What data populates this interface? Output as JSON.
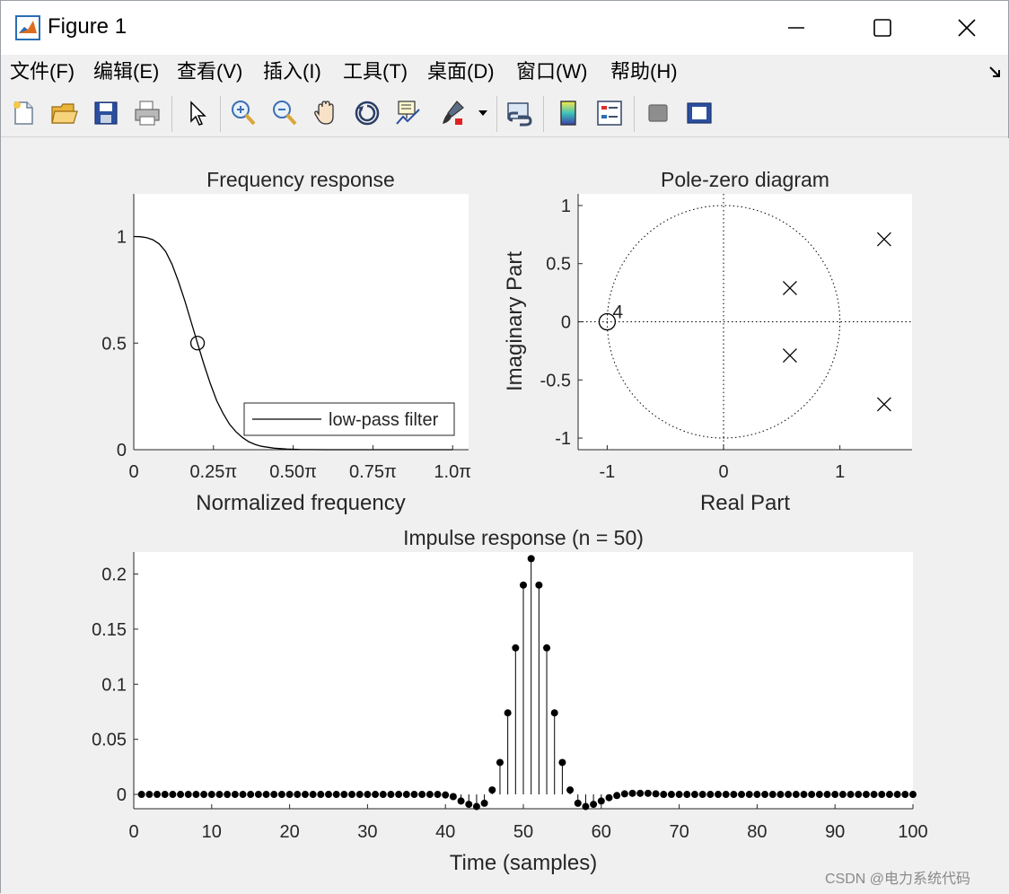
{
  "window": {
    "title": "Figure 1",
    "controls": {
      "minimize": "—",
      "maximize": "☐",
      "close": "✕"
    }
  },
  "menu": {
    "items": [
      {
        "label": "文件(F)",
        "key": "F"
      },
      {
        "label": "编辑(E)",
        "key": "E"
      },
      {
        "label": "查看(V)",
        "key": "V"
      },
      {
        "label": "插入(I)",
        "key": "I"
      },
      {
        "label": "工具(T)",
        "key": "T"
      },
      {
        "label": "桌面(D)",
        "key": "D"
      },
      {
        "label": "窗口(W)",
        "key": "W"
      },
      {
        "label": "帮助(H)",
        "key": "H"
      }
    ]
  },
  "toolbar": {
    "tools": [
      {
        "name": "new-figure-icon"
      },
      {
        "name": "open-file-icon"
      },
      {
        "name": "save-icon"
      },
      {
        "name": "print-icon"
      },
      {
        "name": "edit-plot-cursor-icon"
      },
      {
        "name": "zoom-in-icon"
      },
      {
        "name": "zoom-out-icon"
      },
      {
        "name": "pan-hand-icon"
      },
      {
        "name": "rotate-3d-icon"
      },
      {
        "name": "data-cursor-icon"
      },
      {
        "name": "brush-icon"
      },
      {
        "name": "brush-dropdown-icon"
      },
      {
        "name": "link-plot-icon"
      },
      {
        "name": "insert-colorbar-icon"
      },
      {
        "name": "insert-legend-icon"
      },
      {
        "name": "hide-plot-tools-icon"
      },
      {
        "name": "show-plot-tools-icon"
      }
    ]
  },
  "chart_data": [
    {
      "type": "line",
      "title": "Frequency response",
      "xlabel": "Normalized frequency",
      "ylabel": "",
      "xlim": [
        0,
        1.05
      ],
      "ylim": [
        0,
        1.2
      ],
      "xticks": [
        "0",
        "0.25π",
        "0.50π",
        "0.75π",
        "1.0π"
      ],
      "xtick_values": [
        0,
        0.25,
        0.5,
        0.75,
        1.0
      ],
      "yticks": [
        "0",
        "0.5",
        "1"
      ],
      "ytick_values": [
        0,
        0.5,
        1
      ],
      "series": [
        {
          "name": "low-pass filter",
          "x": [
            0,
            0.02,
            0.04,
            0.06,
            0.08,
            0.1,
            0.12,
            0.14,
            0.16,
            0.18,
            0.2,
            0.22,
            0.24,
            0.26,
            0.28,
            0.3,
            0.32,
            0.34,
            0.36,
            0.38,
            0.4,
            0.44,
            0.48,
            0.52,
            0.56,
            0.6,
            0.7,
            0.8,
            0.9,
            1.0
          ],
          "y": [
            1.0,
            0.999,
            0.995,
            0.985,
            0.965,
            0.93,
            0.87,
            0.79,
            0.7,
            0.6,
            0.5,
            0.4,
            0.31,
            0.23,
            0.17,
            0.12,
            0.085,
            0.058,
            0.038,
            0.025,
            0.016,
            0.007,
            0.003,
            0.001,
            0.0005,
            0.0002,
            0,
            0,
            0,
            0
          ]
        }
      ],
      "marker_point": {
        "x": 0.2,
        "y": 0.5
      },
      "legend": "bottom-right"
    },
    {
      "type": "scatter",
      "title": "Pole-zero diagram",
      "xlabel": "Real Part",
      "ylabel": "Imaginary Part",
      "xlim": [
        -1.25,
        1.62
      ],
      "ylim": [
        -1.1,
        1.1
      ],
      "xticks": [
        "-1",
        "0",
        "1"
      ],
      "xtick_values": [
        -1,
        0,
        1
      ],
      "yticks": [
        "-1",
        "-0.5",
        "0",
        "0.5",
        "1"
      ],
      "ytick_values": [
        -1,
        -0.5,
        0,
        0.5,
        1
      ],
      "zeros": [
        {
          "x": -1,
          "y": 0,
          "multiplicity": "4"
        }
      ],
      "poles": [
        {
          "x": 0.57,
          "y": 0.29
        },
        {
          "x": 0.57,
          "y": -0.29
        },
        {
          "x": 1.38,
          "y": 0.71
        },
        {
          "x": 1.38,
          "y": -0.71
        }
      ],
      "unit_circle": true
    },
    {
      "type": "stem",
      "title": "Impulse response (n = 50)",
      "xlabel": "Time (samples)",
      "ylabel": "",
      "xlim": [
        0,
        100
      ],
      "ylim": [
        -0.013,
        0.22
      ],
      "xticks": [
        "0",
        "10",
        "20",
        "30",
        "40",
        "50",
        "60",
        "70",
        "80",
        "90",
        "100"
      ],
      "xtick_values": [
        0,
        10,
        20,
        30,
        40,
        50,
        60,
        70,
        80,
        90,
        100
      ],
      "yticks": [
        "0",
        "0.05",
        "0.1",
        "0.15",
        "0.2"
      ],
      "ytick_values": [
        0,
        0.05,
        0.1,
        0.15,
        0.2
      ],
      "x": [
        1,
        2,
        3,
        4,
        5,
        6,
        7,
        8,
        9,
        10,
        11,
        12,
        13,
        14,
        15,
        16,
        17,
        18,
        19,
        20,
        21,
        22,
        23,
        24,
        25,
        26,
        27,
        28,
        29,
        30,
        31,
        32,
        33,
        34,
        35,
        36,
        37,
        38,
        39,
        40,
        41,
        42,
        43,
        44,
        45,
        46,
        47,
        48,
        49,
        50,
        51,
        52,
        53,
        54,
        55,
        56,
        57,
        58,
        59,
        60,
        61,
        62,
        63,
        64,
        65,
        66,
        67,
        68,
        69,
        70,
        71,
        72,
        73,
        74,
        75,
        76,
        77,
        78,
        79,
        80,
        81,
        82,
        83,
        84,
        85,
        86,
        87,
        88,
        89,
        90,
        91,
        92,
        93,
        94,
        95,
        96,
        97,
        98,
        99,
        100
      ],
      "values": [
        0,
        0,
        0,
        0,
        0,
        0,
        0,
        0,
        0,
        0,
        0,
        0,
        0,
        0,
        0,
        0,
        0,
        0,
        0,
        0,
        0,
        0,
        0,
        0,
        0,
        0,
        0,
        0,
        0,
        0,
        0,
        0,
        0,
        0,
        0,
        0,
        0,
        0,
        0,
        -0.0005,
        -0.002,
        -0.006,
        -0.009,
        -0.011,
        -0.008,
        0.004,
        0.029,
        0.074,
        0.133,
        0.19,
        0.214,
        0.19,
        0.133,
        0.074,
        0.029,
        0.004,
        -0.008,
        -0.011,
        -0.009,
        -0.006,
        -0.003,
        -0.001,
        0.0005,
        0.001,
        0.001,
        0.001,
        0.0005,
        0,
        0,
        0,
        0,
        0,
        0,
        0,
        0,
        0,
        0,
        0,
        0,
        0,
        0,
        0,
        0,
        0,
        0,
        0,
        0,
        0,
        0,
        0,
        0,
        0,
        0,
        0,
        0,
        0,
        0,
        0,
        0,
        0
      ]
    }
  ],
  "watermark": "CSDN @电力系统代码"
}
